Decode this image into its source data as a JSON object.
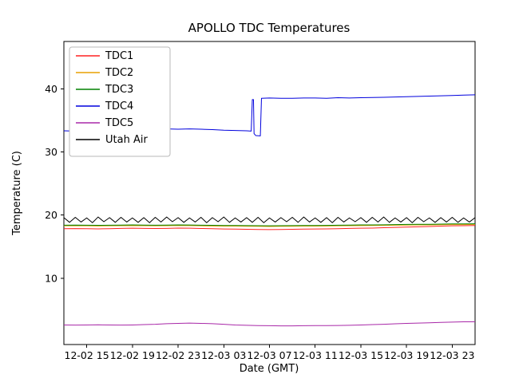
{
  "chart_data": {
    "type": "line",
    "title": "APOLLO TDC Temperatures",
    "xlabel": "Date (GMT)",
    "ylabel": "Temperature (C)",
    "x_axis": {
      "min": 0,
      "max": 36,
      "unit": "hours since 12-02 13:00 GMT"
    },
    "ylim": [
      -0.5,
      47.5
    ],
    "grid": false,
    "legend_position": "upper left",
    "x_ticks": [
      {
        "x": 2,
        "label": "12-02 15"
      },
      {
        "x": 6,
        "label": "12-02 19"
      },
      {
        "x": 10,
        "label": "12-02 23"
      },
      {
        "x": 14,
        "label": "12-03 03"
      },
      {
        "x": 18,
        "label": "12-03 07"
      },
      {
        "x": 22,
        "label": "12-03 11"
      },
      {
        "x": 26,
        "label": "12-03 15"
      },
      {
        "x": 30,
        "label": "12-03 19"
      },
      {
        "x": 34,
        "label": "12-03 23"
      }
    ],
    "y_ticks": [
      {
        "y": 10,
        "label": "10"
      },
      {
        "y": 20,
        "label": "20"
      },
      {
        "y": 30,
        "label": "30"
      },
      {
        "y": 40,
        "label": "40"
      }
    ],
    "series": [
      {
        "name": "TDC1",
        "color": "#ff2020",
        "x0": 0,
        "dx": 1,
        "values": [
          17.85,
          17.87,
          17.85,
          17.82,
          17.85,
          17.9,
          17.92,
          17.9,
          17.88,
          17.9,
          17.95,
          17.92,
          17.88,
          17.85,
          17.8,
          17.78,
          17.75,
          17.72,
          17.7,
          17.72,
          17.75,
          17.78,
          17.8,
          17.82,
          17.85,
          17.9,
          17.92,
          17.95,
          18.0,
          18.05,
          18.1,
          18.15,
          18.2,
          18.25,
          18.3,
          18.32,
          18.35
        ]
      },
      {
        "name": "TDC2",
        "color": "#e8a000",
        "x0": 0,
        "dx": 1,
        "values": [
          18.3,
          18.32,
          18.3,
          18.28,
          18.3,
          18.32,
          18.34,
          18.32,
          18.3,
          18.32,
          18.35,
          18.33,
          18.3,
          18.28,
          18.26,
          18.25,
          18.23,
          18.22,
          18.2,
          18.22,
          18.23,
          18.25,
          18.25,
          18.27,
          18.3,
          18.32,
          18.34,
          18.35,
          18.37,
          18.4,
          18.42,
          18.45,
          18.45,
          18.48,
          18.5,
          18.5,
          18.52
        ]
      },
      {
        "name": "TDC3",
        "color": "#008000",
        "x0": 0,
        "dx": 1,
        "values": [
          18.4,
          18.42,
          18.4,
          18.38,
          18.4,
          18.42,
          18.44,
          18.42,
          18.4,
          18.42,
          18.45,
          18.43,
          18.4,
          18.38,
          18.36,
          18.35,
          18.33,
          18.32,
          18.3,
          18.32,
          18.33,
          18.35,
          18.35,
          18.37,
          18.4,
          18.42,
          18.44,
          18.45,
          18.47,
          18.5,
          18.52,
          18.55,
          18.55,
          18.58,
          18.6,
          18.6,
          18.62
        ]
      },
      {
        "name": "TDC4",
        "color": "#0000dd",
        "points": [
          [
            0,
            33.35
          ],
          [
            1,
            33.3
          ],
          [
            2,
            33.35
          ],
          [
            3,
            33.4
          ],
          [
            4,
            33.42
          ],
          [
            5,
            33.48
          ],
          [
            6,
            33.52
          ],
          [
            7,
            33.58
          ],
          [
            8,
            33.62
          ],
          [
            9,
            33.65
          ],
          [
            10,
            33.6
          ],
          [
            11,
            33.65
          ],
          [
            12,
            33.6
          ],
          [
            13,
            33.55
          ],
          [
            14,
            33.45
          ],
          [
            15,
            33.4
          ],
          [
            16,
            33.35
          ],
          [
            16.4,
            33.3
          ],
          [
            16.5,
            38.3
          ],
          [
            16.6,
            38.3
          ],
          [
            16.65,
            32.9
          ],
          [
            16.8,
            32.6
          ],
          [
            17.2,
            32.55
          ],
          [
            17.3,
            38.5
          ],
          [
            18,
            38.55
          ],
          [
            19,
            38.5
          ],
          [
            20,
            38.5
          ],
          [
            21,
            38.55
          ],
          [
            22,
            38.55
          ],
          [
            23,
            38.5
          ],
          [
            24,
            38.6
          ],
          [
            25,
            38.55
          ],
          [
            26,
            38.6
          ],
          [
            27,
            38.62
          ],
          [
            28,
            38.65
          ],
          [
            29,
            38.7
          ],
          [
            30,
            38.75
          ],
          [
            31,
            38.8
          ],
          [
            32,
            38.85
          ],
          [
            33,
            38.9
          ],
          [
            34,
            38.95
          ],
          [
            35,
            39.0
          ],
          [
            36,
            39.05
          ]
        ]
      },
      {
        "name": "TDC5",
        "color": "#a828a8",
        "x0": 0,
        "dx": 1,
        "values": [
          2.6,
          2.58,
          2.6,
          2.62,
          2.6,
          2.58,
          2.6,
          2.65,
          2.7,
          2.8,
          2.85,
          2.9,
          2.85,
          2.8,
          2.7,
          2.6,
          2.55,
          2.5,
          2.48,
          2.45,
          2.45,
          2.48,
          2.5,
          2.5,
          2.52,
          2.55,
          2.6,
          2.65,
          2.7,
          2.78,
          2.85,
          2.9,
          2.95,
          3.0,
          3.05,
          3.1,
          3.1
        ]
      },
      {
        "name": "Utah Air",
        "color": "#000000",
        "x0": 0,
        "dx": 0.5,
        "values": [
          19.6,
          18.85,
          19.65,
          18.9,
          19.55,
          18.8,
          19.7,
          18.95,
          19.6,
          18.85,
          19.65,
          18.9,
          19.55,
          18.85,
          19.6,
          18.8,
          19.65,
          18.9,
          19.7,
          18.95,
          19.6,
          18.85,
          19.55,
          18.9,
          19.65,
          18.8,
          19.6,
          18.95,
          19.7,
          18.85,
          19.55,
          18.9,
          19.6,
          18.85,
          19.65,
          18.8,
          19.55,
          18.9,
          19.6,
          18.95,
          19.65,
          18.85,
          19.7,
          18.9,
          19.55,
          18.85,
          19.6,
          18.8,
          19.65,
          18.9,
          19.55,
          18.95,
          19.6,
          18.85,
          19.65,
          18.9,
          19.7,
          18.85,
          19.55,
          18.9,
          19.6,
          18.8,
          19.65,
          18.95,
          19.55,
          18.85,
          19.6,
          18.9,
          19.65,
          18.85,
          19.55,
          18.9,
          19.6
        ]
      }
    ]
  }
}
